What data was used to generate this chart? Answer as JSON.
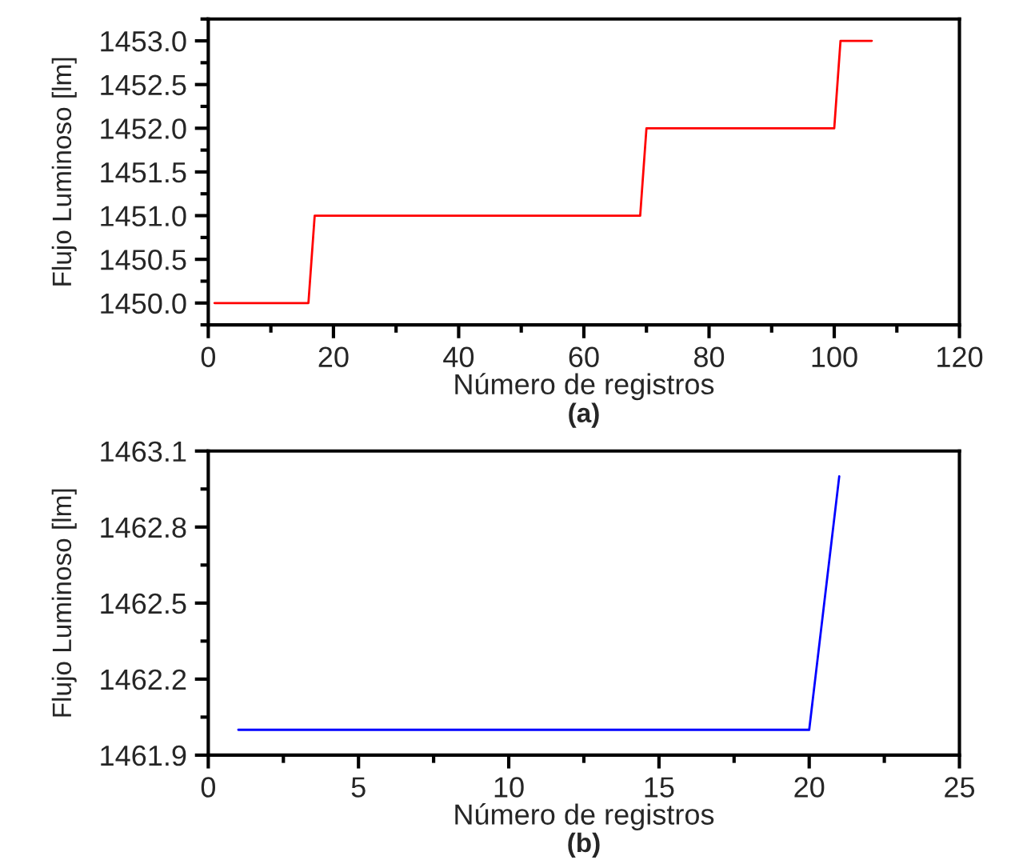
{
  "chart_data": [
    {
      "type": "line",
      "xlabel": "Número de registros",
      "ylabel": "Flujo Luminoso [lm]",
      "annotations": [
        "(a)"
      ],
      "x": [
        1,
        16,
        17,
        69,
        70,
        100,
        101,
        106
      ],
      "series": [
        {
          "color": "#ff0000",
          "values": [
            1450.0,
            1450.0,
            1451.0,
            1451.0,
            1452.0,
            1452.0,
            1453.0,
            1453.0
          ]
        }
      ],
      "xlim": [
        0,
        120
      ],
      "xticks": [
        0,
        20,
        40,
        60,
        80,
        100,
        120
      ],
      "ylim": [
        1449.75,
        1453.25
      ],
      "yticks": [
        {
          "value": 1450.0,
          "label": "1450.0"
        },
        {
          "value": 1450.5,
          "label": "1450.5"
        },
        {
          "value": 1451.0,
          "label": "1451.0"
        },
        {
          "value": 1451.5,
          "label": "1451.5"
        },
        {
          "value": 1452.0,
          "label": "1452.0"
        },
        {
          "value": 1452.5,
          "label": "1452.5"
        },
        {
          "value": 1453.0,
          "label": "1453.0"
        }
      ],
      "grid": false,
      "legend": false
    },
    {
      "type": "line",
      "xlabel": "Número de registros",
      "ylabel": "Flujo Luminoso [lm]",
      "annotations": [
        "(b)"
      ],
      "x": [
        1,
        20,
        21
      ],
      "series": [
        {
          "color": "#0000ff",
          "values": [
            1462.0,
            1462.0,
            1463.0
          ]
        }
      ],
      "xlim": [
        0,
        25
      ],
      "xticks": [
        0,
        5,
        10,
        15,
        20,
        25
      ],
      "ylim": [
        1461.9,
        1463.1
      ],
      "yticks": [
        1461.9,
        1462.2,
        1462.5,
        1462.8,
        1463.1
      ],
      "grid": false,
      "legend": false
    }
  ]
}
